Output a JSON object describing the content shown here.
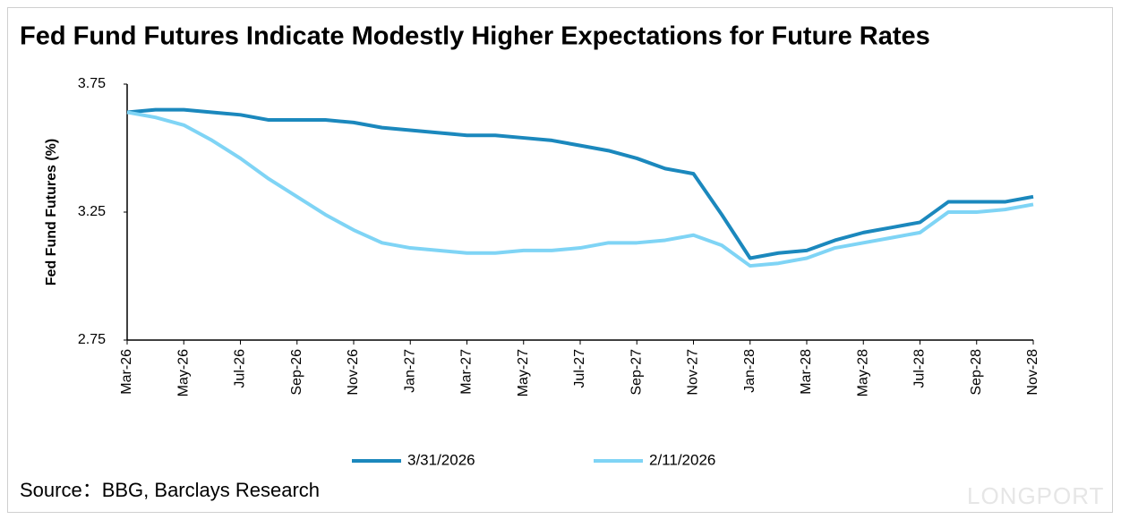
{
  "chart_data": {
    "type": "line",
    "title": "Fed Fund Futures Indicate Modestly Higher Expectations for Future Rates",
    "y_label": "Fed Fund Futures (%)",
    "source": "Source：BBG, Barclays Research",
    "watermark": "LONGPORT",
    "categories": [
      "Mar-26",
      null,
      "May-26",
      null,
      "Jul-26",
      null,
      "Sep-26",
      null,
      "Nov-26",
      null,
      "Jan-27",
      null,
      "Mar-27",
      null,
      "May-27",
      null,
      "Jul-27",
      null,
      "Sep-27",
      null,
      "Nov-27",
      null,
      "Jan-28",
      null,
      "Mar-28",
      null,
      "May-28",
      null,
      "Jul-28",
      null,
      "Sep-28",
      null,
      "Nov-28"
    ],
    "series": [
      {
        "name": "3/31/2026",
        "color": "#1b88bd",
        "values": [
          3.64,
          3.65,
          3.65,
          3.64,
          3.63,
          3.61,
          3.61,
          3.61,
          3.6,
          3.58,
          3.57,
          3.56,
          3.55,
          3.55,
          3.54,
          3.53,
          3.51,
          3.49,
          3.46,
          3.42,
          3.4,
          3.24,
          3.07,
          3.09,
          3.1,
          3.14,
          3.17,
          3.19,
          3.21,
          3.29,
          3.29,
          3.29,
          3.31
        ]
      },
      {
        "name": "2/11/2026",
        "color": "#7fd4f5",
        "values": [
          3.64,
          3.62,
          3.59,
          3.53,
          3.46,
          3.38,
          3.31,
          3.24,
          3.18,
          3.13,
          3.11,
          3.1,
          3.09,
          3.09,
          3.1,
          3.1,
          3.11,
          3.13,
          3.13,
          3.14,
          3.16,
          3.12,
          3.04,
          3.05,
          3.07,
          3.11,
          3.13,
          3.15,
          3.17,
          3.25,
          3.25,
          3.26,
          3.28
        ]
      }
    ],
    "ylim": [
      2.75,
      3.75
    ],
    "yticks": [
      2.75,
      3.25,
      3.75
    ],
    "grid": false,
    "legend": "bottom"
  }
}
